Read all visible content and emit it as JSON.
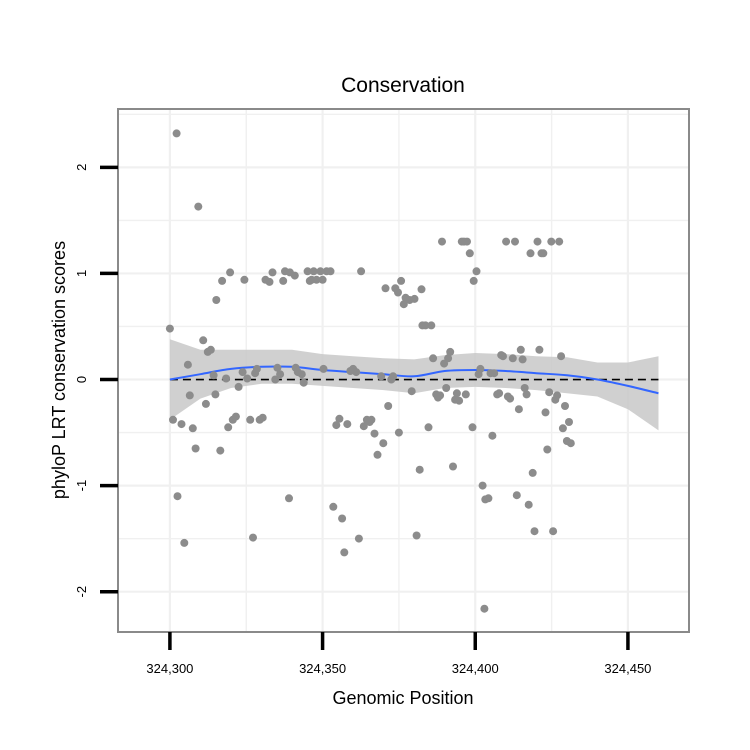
{
  "chart_data": {
    "type": "scatter",
    "title": "Conservation",
    "xlabel": "Genomic Position",
    "ylabel": "phyloP LRT conservation scores",
    "xlim": [
      324283,
      324470
    ],
    "ylim": [
      -2.38,
      2.55
    ],
    "x_ticks": [
      324300,
      324350,
      324400,
      324450
    ],
    "x_tick_labels": [
      "324,300",
      "324,350",
      "324,400",
      "324,450"
    ],
    "y_ticks": [
      -2,
      -1,
      0,
      1,
      2
    ],
    "y_tick_labels": [
      "-2",
      "-1",
      "0",
      "1",
      "2"
    ],
    "grid": true,
    "reference_line": {
      "y": 0,
      "style": "dashed",
      "color": "#000000"
    },
    "colors": {
      "points": "#8c8c8c",
      "smooth": "#3366ff",
      "ribbon": "#c8c8c8",
      "grid": "#f0f0f0",
      "border": "#8a8a8a",
      "background": "#ffffff"
    },
    "series": [
      {
        "type": "scatter",
        "points": [
          [
            324300.0,
            0.48
          ],
          [
            324301.0,
            -0.38
          ],
          [
            324302.2,
            2.32
          ],
          [
            324302.5,
            -1.1
          ],
          [
            324303.8,
            -0.42
          ],
          [
            324304.7,
            -1.54
          ],
          [
            324305.9,
            0.14
          ],
          [
            324306.5,
            -0.15
          ],
          [
            324307.5,
            -0.46
          ],
          [
            324308.4,
            -0.65
          ],
          [
            324309.3,
            1.63
          ],
          [
            324310.9,
            0.37
          ],
          [
            324311.8,
            -0.23
          ],
          [
            324312.4,
            0.26
          ],
          [
            324313.4,
            0.28
          ],
          [
            324314.3,
            0.04
          ],
          [
            324314.9,
            -0.14
          ],
          [
            324315.2,
            0.75
          ],
          [
            324316.5,
            -0.67
          ],
          [
            324317.1,
            0.93
          ],
          [
            324318.4,
            0.01
          ],
          [
            324319.1,
            -0.45
          ],
          [
            324319.7,
            1.01
          ],
          [
            324320.6,
            -0.38
          ],
          [
            324321.6,
            -0.35
          ],
          [
            324322.5,
            -0.07
          ],
          [
            324323.8,
            0.07
          ],
          [
            324324.4,
            0.94
          ],
          [
            324325.3,
            0.01
          ],
          [
            324326.3,
            -0.38
          ],
          [
            324327.2,
            -1.49
          ],
          [
            324327.9,
            0.06
          ],
          [
            324328.5,
            0.1
          ],
          [
            324329.4,
            -0.38
          ],
          [
            324330.4,
            -0.36
          ],
          [
            324331.3,
            0.94
          ],
          [
            324332.6,
            0.92
          ],
          [
            324333.6,
            1.01
          ],
          [
            324334.5,
            0.0
          ],
          [
            324335.2,
            0.11
          ],
          [
            324336.1,
            0.05
          ],
          [
            324337.1,
            0.93
          ],
          [
            324337.7,
            1.02
          ],
          [
            324339.0,
            -1.12
          ],
          [
            324339.3,
            1.01
          ],
          [
            324340.9,
            0.98
          ],
          [
            324341.2,
            0.11
          ],
          [
            324341.9,
            0.07
          ],
          [
            324343.2,
            0.05
          ],
          [
            324343.8,
            -0.03
          ],
          [
            324345.1,
            1.02
          ],
          [
            324345.8,
            0.93
          ],
          [
            324346.4,
            0.94
          ],
          [
            324347.1,
            1.02
          ],
          [
            324348.0,
            0.94
          ],
          [
            324349.3,
            1.02
          ],
          [
            324350.0,
            0.94
          ],
          [
            324350.3,
            0.1
          ],
          [
            324351.3,
            1.02
          ],
          [
            324352.6,
            1.02
          ],
          [
            324353.5,
            -1.2
          ],
          [
            324354.5,
            -0.43
          ],
          [
            324355.5,
            -0.37
          ],
          [
            324356.4,
            -1.31
          ],
          [
            324357.1,
            -1.63
          ],
          [
            324358.1,
            -0.42
          ],
          [
            324359.1,
            0.08
          ],
          [
            324360.0,
            0.1
          ],
          [
            324361.0,
            0.07
          ],
          [
            324361.9,
            -1.5
          ],
          [
            324362.6,
            1.02
          ],
          [
            324363.5,
            -0.44
          ],
          [
            324364.5,
            -0.38
          ],
          [
            324365.4,
            -0.4
          ],
          [
            324366.0,
            -0.38
          ],
          [
            324367.0,
            -0.51
          ],
          [
            324368.0,
            -0.71
          ],
          [
            324369.2,
            0.03
          ],
          [
            324369.9,
            -0.6
          ],
          [
            324370.6,
            0.86
          ],
          [
            324371.5,
            -0.25
          ],
          [
            324372.5,
            0.0
          ],
          [
            324373.1,
            0.03
          ],
          [
            324373.8,
            0.86
          ],
          [
            324374.7,
            0.82
          ],
          [
            324375.0,
            -0.5
          ],
          [
            324375.7,
            0.93
          ],
          [
            324376.6,
            0.71
          ],
          [
            324377.2,
            0.77
          ],
          [
            324378.5,
            0.75
          ],
          [
            324379.2,
            -0.11
          ],
          [
            324380.1,
            0.76
          ],
          [
            324380.8,
            -1.47
          ],
          [
            324381.8,
            -0.85
          ],
          [
            324382.4,
            0.85
          ],
          [
            324382.7,
            0.51
          ],
          [
            324383.7,
            0.51
          ],
          [
            324384.7,
            -0.45
          ],
          [
            324385.6,
            0.51
          ],
          [
            324386.2,
            0.2
          ],
          [
            324387.2,
            -0.14
          ],
          [
            324387.8,
            -0.17
          ],
          [
            324388.5,
            -0.15
          ],
          [
            324389.1,
            1.3
          ],
          [
            324389.8,
            0.15
          ],
          [
            324390.5,
            -0.08
          ],
          [
            324391.1,
            0.2
          ],
          [
            324391.8,
            0.26
          ],
          [
            324392.7,
            -0.82
          ],
          [
            324393.4,
            -0.19
          ],
          [
            324394.0,
            -0.13
          ],
          [
            324394.7,
            -0.2
          ],
          [
            324395.6,
            1.3
          ],
          [
            324396.3,
            1.3
          ],
          [
            324396.9,
            -0.14
          ],
          [
            324397.3,
            1.3
          ],
          [
            324398.2,
            1.19
          ],
          [
            324399.1,
            -0.45
          ],
          [
            324399.5,
            0.93
          ],
          [
            324400.4,
            1.02
          ],
          [
            324401.1,
            0.05
          ],
          [
            324401.7,
            0.1
          ],
          [
            324402.4,
            -1.0
          ],
          [
            324403.3,
            -1.13
          ],
          [
            324403.0,
            -2.16
          ],
          [
            324404.3,
            -1.12
          ],
          [
            324405.0,
            0.06
          ],
          [
            324405.6,
            -0.53
          ],
          [
            324406.2,
            0.06
          ],
          [
            324407.2,
            -0.14
          ],
          [
            324407.8,
            -0.13
          ],
          [
            324408.5,
            0.23
          ],
          [
            324409.1,
            0.22
          ],
          [
            324410.1,
            1.3
          ],
          [
            324410.7,
            -0.16
          ],
          [
            324411.4,
            -0.18
          ],
          [
            324412.3,
            0.2
          ],
          [
            324413.0,
            1.3
          ],
          [
            324413.6,
            -1.09
          ],
          [
            324414.3,
            -0.28
          ],
          [
            324414.9,
            0.28
          ],
          [
            324415.5,
            0.19
          ],
          [
            324416.2,
            -0.08
          ],
          [
            324416.8,
            -0.14
          ],
          [
            324417.5,
            -1.18
          ],
          [
            324418.1,
            1.19
          ],
          [
            324418.8,
            -0.88
          ],
          [
            324419.4,
            -1.43
          ],
          [
            324420.4,
            1.3
          ],
          [
            324421.0,
            0.28
          ],
          [
            324421.7,
            1.19
          ],
          [
            324422.3,
            1.19
          ],
          [
            324423.0,
            -0.31
          ],
          [
            324423.6,
            -0.66
          ],
          [
            324424.2,
            -0.12
          ],
          [
            324424.9,
            1.3
          ],
          [
            324425.5,
            -1.43
          ],
          [
            324426.2,
            -0.19
          ],
          [
            324426.8,
            -0.15
          ],
          [
            324427.5,
            1.3
          ],
          [
            324428.1,
            0.22
          ],
          [
            324428.7,
            -0.46
          ],
          [
            324429.4,
            -0.25
          ],
          [
            324430.0,
            -0.58
          ],
          [
            324430.7,
            -0.4
          ],
          [
            324431.3,
            -0.6
          ]
        ]
      },
      {
        "type": "line",
        "smooth": true,
        "x": [
          324300,
          324310,
          324320,
          324330,
          324340,
          324350,
          324360,
          324370,
          324380,
          324390,
          324400,
          324410,
          324420,
          324430,
          324440,
          324450,
          324460
        ],
        "values": [
          0.0,
          0.05,
          0.1,
          0.12,
          0.12,
          0.09,
          0.07,
          0.05,
          0.03,
          0.08,
          0.09,
          0.08,
          0.06,
          0.04,
          0.0,
          -0.06,
          -0.13
        ],
        "band_lower": [
          -0.38,
          -0.18,
          -0.08,
          -0.04,
          -0.04,
          -0.06,
          -0.08,
          -0.1,
          -0.13,
          -0.08,
          -0.07,
          -0.08,
          -0.1,
          -0.13,
          -0.16,
          -0.28,
          -0.48
        ],
        "band_upper": [
          0.38,
          0.28,
          0.28,
          0.28,
          0.28,
          0.24,
          0.22,
          0.2,
          0.19,
          0.23,
          0.25,
          0.24,
          0.22,
          0.21,
          0.16,
          0.16,
          0.22
        ]
      }
    ]
  }
}
